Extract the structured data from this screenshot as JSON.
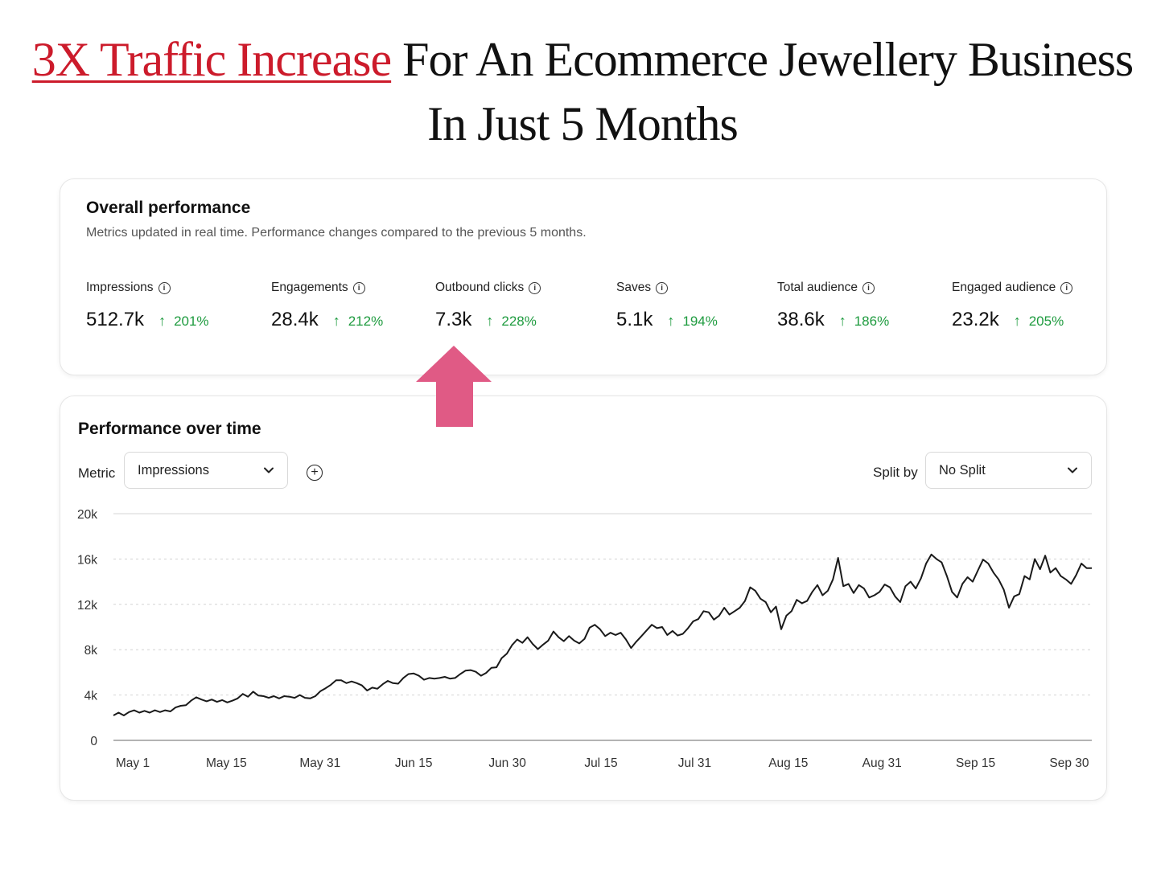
{
  "headline": {
    "accent": "3X Traffic Increase",
    "rest": " For An Ecommerce Jewellery Business",
    "line2": "In Just 5 Months"
  },
  "overall": {
    "title": "Overall performance",
    "subtitle": "Metrics updated in real time. Performance changes compared to the previous 5 months.",
    "metrics": [
      {
        "label": "Impressions",
        "value": "512.7k",
        "change": "201%"
      },
      {
        "label": "Engagements",
        "value": "28.4k",
        "change": "212%"
      },
      {
        "label": "Outbound clicks",
        "value": "7.3k",
        "change": "228%"
      },
      {
        "label": "Saves",
        "value": "5.1k",
        "change": "194%"
      },
      {
        "label": "Total audience",
        "value": "38.6k",
        "change": "186%"
      },
      {
        "label": "Engaged audience",
        "value": "23.2k",
        "change": "205%"
      }
    ],
    "up_arrow": "↑",
    "info_glyph": "i",
    "colors": {
      "positive": "#1e9b3f",
      "highlight_arrow": "#e05a85",
      "headline_accent": "#cc1b2b"
    }
  },
  "overtime": {
    "title": "Performance over time",
    "metric_label": "Metric",
    "metric_value": "Impressions",
    "split_label": "Split by",
    "split_value": "No Split",
    "add_glyph": "+"
  },
  "chart_data": {
    "type": "line",
    "ylim": [
      0,
      20000
    ],
    "yticks": [
      0,
      4000,
      8000,
      12000,
      16000,
      20000
    ],
    "ytick_labels": [
      "0",
      "4k",
      "8k",
      "12k",
      "16k",
      "20k"
    ],
    "xtick_labels": [
      "May 1",
      "May 15",
      "May 31",
      "Jun 15",
      "Jun 30",
      "Jul 15",
      "Jul 31",
      "Aug 15",
      "Aug 31",
      "Sep 15",
      "Sep 30"
    ],
    "grid": true,
    "series": [
      {
        "values": [
          2200,
          2450,
          2200,
          2500,
          2650,
          2450,
          2600,
          2450,
          2650,
          2500,
          2650,
          2550,
          2900,
          3050,
          3100,
          3500,
          3800,
          3600,
          3450,
          3600,
          3400,
          3550,
          3350,
          3500,
          3700,
          4100,
          3850,
          4300,
          3950,
          3900,
          3750,
          3900,
          3700,
          3900,
          3850,
          3750,
          4000,
          3750,
          3700,
          3900,
          4350,
          4600,
          4900,
          5300,
          5300,
          5050,
          5200,
          5050,
          4850,
          4400,
          4650,
          4550,
          4950,
          5250,
          5050,
          5000,
          5500,
          5850,
          5900,
          5700,
          5350,
          5500,
          5450,
          5500,
          5600,
          5450,
          5500,
          5850,
          6150,
          6200,
          6050,
          5700,
          5950,
          6400,
          6450,
          7250,
          7650,
          8400,
          8900,
          8600,
          9100,
          8500,
          8050,
          8450,
          8800,
          9600,
          9100,
          8750,
          9200,
          8800,
          8550,
          8950,
          9950,
          10200,
          9800,
          9200,
          9500,
          9300,
          9500,
          8900,
          8150,
          8700,
          9200,
          9700,
          10200,
          9900,
          10000,
          9300,
          9650,
          9250,
          9400,
          9900,
          10500,
          10700,
          11400,
          11300,
          10650,
          11000,
          11700,
          11100,
          11400,
          11700,
          12300,
          13500,
          13200,
          12500,
          12200,
          11300,
          11800,
          9800,
          11000,
          11400,
          12400,
          12100,
          12300,
          13100,
          13700,
          12800,
          13200,
          14200,
          16100,
          13600,
          13800,
          13000,
          13700,
          13400,
          12600,
          12800,
          13100,
          13750,
          13500,
          12700,
          12200,
          13600,
          14000,
          13400,
          14300,
          15600,
          16400,
          16000,
          15700,
          14500,
          13100,
          12600,
          13800,
          14400,
          14000,
          15000,
          15950,
          15600,
          14800,
          14200,
          13300,
          11700,
          12700,
          12900,
          14500,
          14200,
          16000,
          15100,
          16300,
          14800,
          15200,
          14500,
          14200,
          13800,
          14600,
          15600,
          15200,
          15200
        ]
      }
    ]
  }
}
